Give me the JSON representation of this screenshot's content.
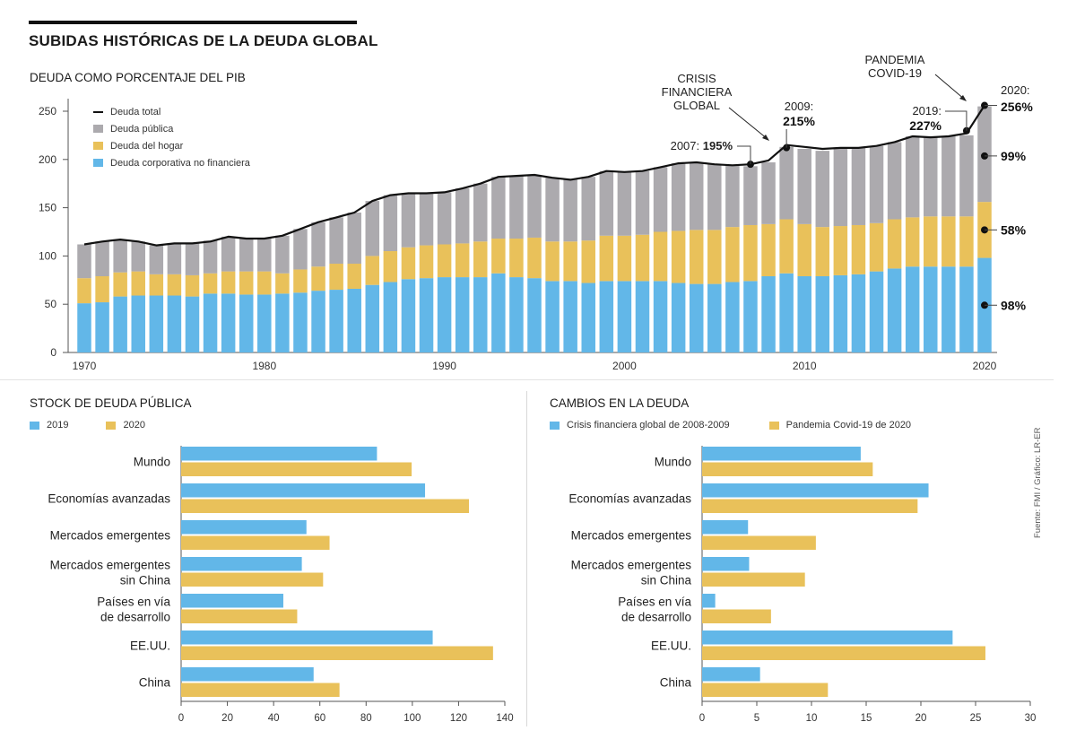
{
  "header": {
    "title": "SUBIDAS HISTÓRICAS DE LA DEUDA GLOBAL"
  },
  "source": "Fuente: FMI / Gráfico: LR-ER",
  "colors": {
    "corporate": "#62b7e8",
    "household": "#e9c15a",
    "public": "#acaaae",
    "total_line": "#111111"
  },
  "chart_data": [
    {
      "type": "bar",
      "stacked": true,
      "title": "DEUDA COMO PORCENTAJE DEL PIB",
      "xlabel": "",
      "ylabel": "",
      "ylim": [
        0,
        260
      ],
      "yticks": [
        0,
        50,
        100,
        150,
        200,
        250
      ],
      "xticks": [
        1970,
        1980,
        1990,
        2000,
        2010,
        2020
      ],
      "legend_position": "top-left",
      "legend": [
        "Deuda total",
        "Deuda pública",
        "Deuda del hogar",
        "Deuda corporativa no financiera"
      ],
      "x": [
        1970,
        1971,
        1972,
        1973,
        1974,
        1975,
        1976,
        1977,
        1978,
        1979,
        1980,
        1981,
        1982,
        1983,
        1984,
        1985,
        1986,
        1987,
        1988,
        1989,
        1990,
        1991,
        1992,
        1993,
        1994,
        1995,
        1996,
        1997,
        1998,
        1999,
        2000,
        2001,
        2002,
        2003,
        2004,
        2005,
        2006,
        2007,
        2008,
        2009,
        2010,
        2011,
        2012,
        2013,
        2014,
        2015,
        2016,
        2017,
        2018,
        2019,
        2020
      ],
      "series": [
        {
          "name": "Deuda corporativa no financiera",
          "values": [
            51,
            52,
            58,
            59,
            59,
            59,
            58,
            61,
            61,
            60,
            60,
            61,
            62,
            64,
            65,
            66,
            70,
            73,
            76,
            77,
            78,
            78,
            78,
            82,
            78,
            77,
            74,
            74,
            72,
            74,
            74,
            74,
            74,
            72,
            71,
            71,
            73,
            74,
            79,
            82,
            79,
            79,
            80,
            81,
            84,
            87,
            89,
            89,
            89,
            89,
            98
          ]
        },
        {
          "name": "Deuda del hogar",
          "values": [
            26,
            27,
            25,
            25,
            22,
            22,
            22,
            21,
            23,
            24,
            24,
            21,
            24,
            25,
            27,
            26,
            30,
            32,
            33,
            34,
            34,
            35,
            37,
            36,
            40,
            42,
            41,
            41,
            44,
            47,
            47,
            48,
            51,
            54,
            56,
            56,
            57,
            58,
            54,
            56,
            54,
            51,
            51,
            51,
            50,
            51,
            51,
            52,
            52,
            52,
            58
          ]
        },
        {
          "name": "Deuda pública",
          "values": [
            35,
            36,
            34,
            31,
            30,
            32,
            33,
            34,
            36,
            34,
            34,
            39,
            42,
            46,
            48,
            53,
            57,
            58,
            56,
            54,
            54,
            57,
            60,
            64,
            65,
            65,
            66,
            64,
            66,
            67,
            66,
            66,
            67,
            70,
            70,
            68,
            64,
            61,
            64,
            75,
            78,
            79,
            81,
            80,
            80,
            80,
            84,
            82,
            83,
            84,
            99
          ]
        },
        {
          "name": "Deuda total",
          "type": "line",
          "values": [
            112,
            115,
            117,
            115,
            111,
            113,
            113,
            115,
            120,
            118,
            118,
            121,
            128,
            135,
            140,
            145,
            157,
            163,
            165,
            165,
            166,
            170,
            175,
            182,
            183,
            184,
            181,
            179,
            182,
            188,
            187,
            188,
            192,
            196,
            197,
            195,
            194,
            195,
            199,
            215,
            213,
            211,
            212,
            212,
            214,
            218,
            224,
            223,
            224,
            227,
            256
          ]
        }
      ],
      "annotations": [
        {
          "text": "CRISIS FINANCIERA GLOBAL",
          "year": 2008
        },
        {
          "label": "2007:",
          "value_label": "195%",
          "year": 2007,
          "value": 195
        },
        {
          "label": "2009:",
          "value_label": "215%",
          "year": 2009,
          "value": 215
        },
        {
          "label": "2019:",
          "value_label": "227%",
          "year": 2019,
          "value": 227
        },
        {
          "text": "PANDEMIA COVID-19",
          "year": 2020
        },
        {
          "label": "2020:",
          "value_label": "256%",
          "year": 2020,
          "value": 256
        },
        {
          "value_label": "99%",
          "year": 2020,
          "segment": "Deuda pública",
          "value": 99
        },
        {
          "value_label": "58%",
          "year": 2020,
          "segment": "Deuda del hogar",
          "value": 58
        },
        {
          "value_label": "98%",
          "year": 2020,
          "segment": "Deuda corporativa no financiera",
          "value": 98
        }
      ]
    },
    {
      "type": "bar",
      "orientation": "horizontal",
      "title": "STOCK DE DEUDA PÚBLICA",
      "xlim": [
        0,
        140
      ],
      "xticks": [
        0,
        20,
        40,
        60,
        80,
        100,
        120,
        140
      ],
      "legend_position": "top-left",
      "categories": [
        "Mundo",
        "Economías avanzadas",
        "Mercados emergentes",
        "Mercados emergentes sin China",
        "Países en vía de desarrollo",
        "EE.UU.",
        "China"
      ],
      "category_lines": [
        [
          "Mundo"
        ],
        [
          "Economías avanzadas"
        ],
        [
          "Mercados emergentes"
        ],
        [
          "Mercados emergentes",
          "sin China"
        ],
        [
          "Países en vía",
          "de desarrollo"
        ],
        [
          "EE.UU."
        ],
        [
          "China"
        ]
      ],
      "series": [
        {
          "name": "2019",
          "values": [
            84.7,
            105.5,
            54.2,
            52.2,
            44.2,
            108.8,
            57.3
          ]
        },
        {
          "name": "2020",
          "values": [
            99.7,
            124.5,
            64.2,
            61.4,
            50.2,
            134.9,
            68.5
          ]
        }
      ]
    },
    {
      "type": "bar",
      "orientation": "horizontal",
      "title": "CAMBIOS EN LA DEUDA",
      "xlim": [
        0,
        30
      ],
      "xticks": [
        0,
        5,
        10,
        15,
        20,
        25,
        30
      ],
      "legend_position": "top-left",
      "categories": [
        "Mundo",
        "Economías avanzadas",
        "Mercados emergentes",
        "Mercados emergentes sin China",
        "Países en vía de desarrollo",
        "EE.UU.",
        "China"
      ],
      "category_lines": [
        [
          "Mundo"
        ],
        [
          "Economías avanzadas"
        ],
        [
          "Mercados emergentes"
        ],
        [
          "Mercados emergentes",
          "sin China"
        ],
        [
          "Países en vía",
          "de desarrollo"
        ],
        [
          "EE.UU."
        ],
        [
          "China"
        ]
      ],
      "series": [
        {
          "name": "Crisis financiera global de 2008-2009",
          "values": [
            14.5,
            20.7,
            4.2,
            4.3,
            1.2,
            22.9,
            5.3
          ]
        },
        {
          "name": "Pandemia Covid-19 de 2020",
          "values": [
            15.6,
            19.7,
            10.4,
            9.4,
            6.3,
            25.9,
            11.5
          ]
        }
      ]
    }
  ]
}
